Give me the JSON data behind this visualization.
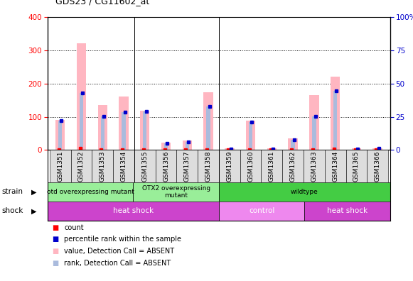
{
  "title": "GDS23 / CG11602_at",
  "samples": [
    "GSM1351",
    "GSM1352",
    "GSM1353",
    "GSM1354",
    "GSM1355",
    "GSM1356",
    "GSM1357",
    "GSM1358",
    "GSM1359",
    "GSM1360",
    "GSM1361",
    "GSM1362",
    "GSM1363",
    "GSM1364",
    "GSM1365",
    "GSM1366"
  ],
  "pink_bars": [
    90,
    320,
    135,
    160,
    118,
    22,
    28,
    173,
    5,
    88,
    5,
    35,
    165,
    220,
    5,
    5
  ],
  "blue_bars": [
    88,
    172,
    102,
    113,
    115,
    20,
    25,
    130,
    4,
    85,
    4,
    30,
    101,
    178,
    4,
    5
  ],
  "red_vals": [
    2,
    5,
    2,
    2,
    2,
    1,
    1,
    2,
    1,
    2,
    1,
    1,
    2,
    4,
    1,
    1
  ],
  "blue_vals": [
    88,
    172,
    102,
    113,
    115,
    20,
    25,
    130,
    4,
    85,
    4,
    30,
    101,
    178,
    4,
    5
  ],
  "ylim_left": [
    0,
    400
  ],
  "ylim_right": [
    0,
    100
  ],
  "yticks_left": [
    0,
    100,
    200,
    300,
    400
  ],
  "yticks_right": [
    0,
    25,
    50,
    75,
    100
  ],
  "strain_groups": [
    {
      "label": "otd overexpressing mutant",
      "start": 0,
      "end": 4,
      "color": "#99ee99"
    },
    {
      "label": "OTX2 overexpressing\nmutant",
      "start": 4,
      "end": 8,
      "color": "#99ee99"
    },
    {
      "label": "wildtype",
      "start": 8,
      "end": 16,
      "color": "#44cc44"
    }
  ],
  "shock_groups": [
    {
      "label": "heat shock",
      "start": 0,
      "end": 8,
      "color": "#cc44cc"
    },
    {
      "label": "control",
      "start": 8,
      "end": 12,
      "color": "#ee88ee"
    },
    {
      "label": "heat shock",
      "start": 12,
      "end": 16,
      "color": "#cc44cc"
    }
  ],
  "legend_items": [
    {
      "label": "count",
      "color": "#ff0000"
    },
    {
      "label": "percentile rank within the sample",
      "color": "#0000cc"
    },
    {
      "label": "value, Detection Call = ABSENT",
      "color": "#ffb6c1"
    },
    {
      "label": "rank, Detection Call = ABSENT",
      "color": "#aabbdd"
    }
  ],
  "pink_color": "#ffb6c1",
  "lightblue_color": "#aabbdd",
  "red_color": "#ff0000",
  "blue_color": "#0000cc",
  "bg_color": "#ffffff",
  "left_axis_color": "#ff0000",
  "right_axis_color": "#0000cc",
  "sep_indices": [
    3.5,
    7.5
  ],
  "strain_sep": [
    4,
    8
  ],
  "shock_sep": [
    8,
    12
  ]
}
